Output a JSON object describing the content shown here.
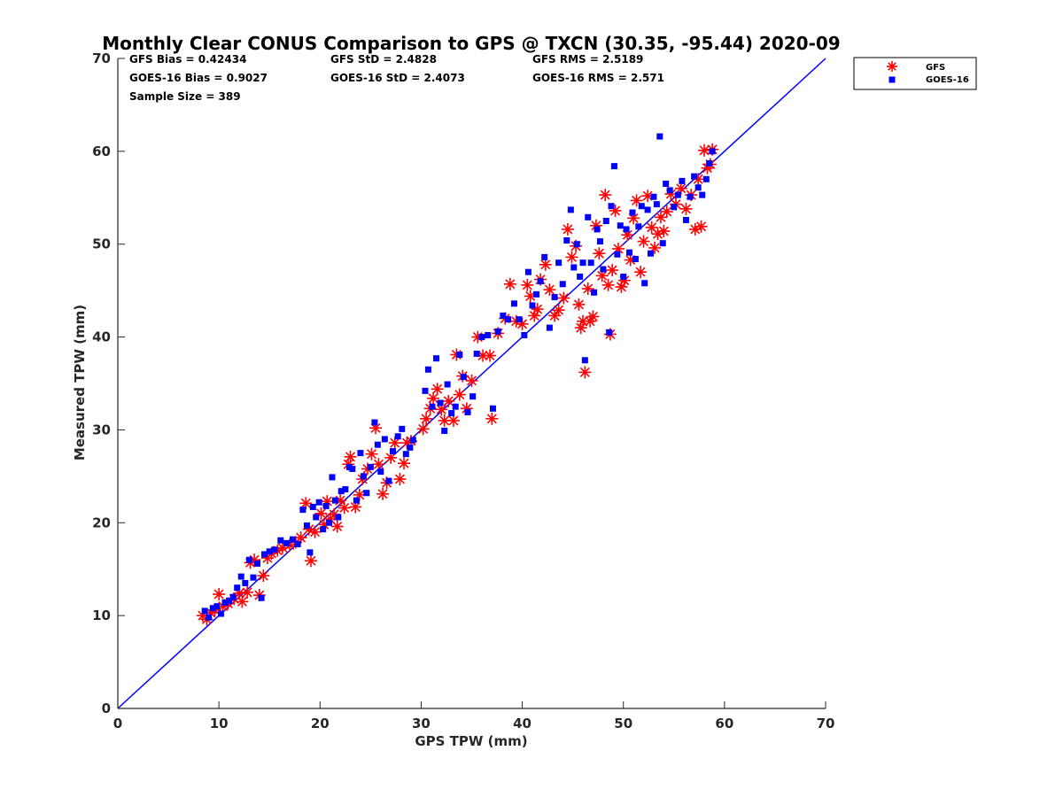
{
  "chart_data": {
    "type": "scatter",
    "title": "Monthly Clear CONUS Comparison to GPS @ TXCN (30.35, -95.44) 2020-09",
    "xlabel": "GPS TPW (mm)",
    "ylabel": "Measured TPW (mm)",
    "xlim": [
      0,
      70
    ],
    "ylim": [
      0,
      70
    ],
    "xticks": [
      0,
      10,
      20,
      30,
      40,
      50,
      60,
      70
    ],
    "yticks": [
      0,
      10,
      20,
      30,
      40,
      50,
      60,
      70
    ],
    "grid": false,
    "legend_position": "outside top-right",
    "stats": [
      [
        "GFS Bias = 0.42434",
        "GFS StD = 2.4828",
        "GFS RMS = 2.5189"
      ],
      [
        "GOES-16 Bias = 0.9027",
        "GOES-16 StD = 2.4073",
        "GOES-16 RMS = 2.571"
      ],
      [
        "Sample Size = 389",
        "",
        ""
      ]
    ],
    "reference_line": {
      "x": [
        0,
        70
      ],
      "y": [
        0,
        70
      ],
      "color": "#0000ff"
    },
    "series": [
      {
        "name": "GFS",
        "marker": "asterisk",
        "color": "#ff0000",
        "points": [
          [
            8.4,
            10.0
          ],
          [
            8.8,
            9.6
          ],
          [
            9.2,
            10.3
          ],
          [
            9.6,
            10.6
          ],
          [
            10.0,
            12.3
          ],
          [
            10.4,
            11.0
          ],
          [
            10.9,
            11.3
          ],
          [
            11.5,
            11.8
          ],
          [
            12.0,
            12.4
          ],
          [
            12.3,
            11.5
          ],
          [
            12.8,
            12.5
          ],
          [
            13.1,
            15.7
          ],
          [
            13.5,
            16.0
          ],
          [
            14.0,
            12.2
          ],
          [
            14.4,
            14.3
          ],
          [
            14.8,
            16.2
          ],
          [
            15.2,
            16.7
          ],
          [
            15.8,
            17.0
          ],
          [
            16.3,
            17.3
          ],
          [
            17.0,
            17.6
          ],
          [
            17.6,
            17.9
          ],
          [
            18.1,
            18.4
          ],
          [
            18.6,
            22.1
          ],
          [
            18.9,
            19.3
          ],
          [
            19.1,
            15.9
          ],
          [
            19.5,
            19.0
          ],
          [
            20.1,
            21.0
          ],
          [
            20.4,
            19.8
          ],
          [
            20.7,
            22.3
          ],
          [
            21.0,
            20.4
          ],
          [
            21.4,
            20.9
          ],
          [
            21.7,
            19.6
          ],
          [
            22.0,
            22.4
          ],
          [
            22.4,
            21.6
          ],
          [
            22.8,
            26.3
          ],
          [
            23.0,
            27.1
          ],
          [
            23.5,
            21.7
          ],
          [
            23.9,
            23.0
          ],
          [
            24.2,
            24.7
          ],
          [
            24.7,
            25.8
          ],
          [
            25.1,
            27.4
          ],
          [
            25.5,
            30.2
          ],
          [
            25.8,
            26.3
          ],
          [
            26.2,
            23.1
          ],
          [
            26.6,
            24.3
          ],
          [
            27.0,
            27.0
          ],
          [
            27.4,
            28.6
          ],
          [
            27.9,
            24.7
          ],
          [
            28.3,
            26.4
          ],
          [
            28.6,
            28.6
          ],
          [
            29.0,
            28.8
          ],
          [
            30.2,
            30.1
          ],
          [
            30.5,
            31.2
          ],
          [
            30.9,
            32.3
          ],
          [
            31.2,
            33.4
          ],
          [
            31.6,
            34.4
          ],
          [
            32.0,
            32.2
          ],
          [
            32.3,
            31.0
          ],
          [
            32.7,
            33.1
          ],
          [
            33.2,
            31.0
          ],
          [
            33.5,
            38.1
          ],
          [
            33.8,
            33.8
          ],
          [
            34.1,
            35.8
          ],
          [
            34.5,
            32.3
          ],
          [
            35.0,
            35.3
          ],
          [
            35.6,
            40.0
          ],
          [
            36.1,
            38.0
          ],
          [
            36.8,
            38.0
          ],
          [
            37.0,
            31.2
          ],
          [
            37.6,
            40.4
          ],
          [
            38.3,
            42.0
          ],
          [
            38.8,
            45.7
          ],
          [
            39.4,
            41.7
          ],
          [
            40.0,
            41.4
          ],
          [
            40.5,
            45.6
          ],
          [
            40.8,
            44.4
          ],
          [
            41.2,
            42.3
          ],
          [
            41.5,
            43.0
          ],
          [
            41.8,
            46.2
          ],
          [
            42.3,
            47.8
          ],
          [
            42.7,
            45.1
          ],
          [
            43.2,
            42.3
          ],
          [
            43.6,
            42.9
          ],
          [
            44.1,
            44.2
          ],
          [
            44.5,
            51.6
          ],
          [
            44.9,
            48.6
          ],
          [
            45.3,
            49.8
          ],
          [
            45.6,
            43.5
          ],
          [
            45.8,
            41.0
          ],
          [
            46.0,
            41.7
          ],
          [
            46.2,
            36.2
          ],
          [
            46.5,
            45.2
          ],
          [
            46.7,
            41.7
          ],
          [
            47.0,
            42.2
          ],
          [
            47.3,
            52.0
          ],
          [
            47.6,
            49.0
          ],
          [
            47.9,
            46.6
          ],
          [
            48.2,
            55.3
          ],
          [
            48.5,
            45.6
          ],
          [
            48.7,
            40.3
          ],
          [
            48.9,
            47.2
          ],
          [
            49.2,
            53.6
          ],
          [
            49.5,
            49.5
          ],
          [
            49.8,
            45.4
          ],
          [
            50.1,
            46.1
          ],
          [
            50.4,
            51.0
          ],
          [
            50.7,
            48.3
          ],
          [
            51.0,
            52.8
          ],
          [
            51.3,
            54.7
          ],
          [
            51.7,
            47.0
          ],
          [
            52.0,
            50.3
          ],
          [
            52.4,
            55.2
          ],
          [
            52.8,
            51.8
          ],
          [
            53.1,
            49.6
          ],
          [
            53.4,
            51.1
          ],
          [
            53.7,
            52.9
          ],
          [
            54.0,
            51.4
          ],
          [
            54.3,
            53.5
          ],
          [
            54.7,
            55.4
          ],
          [
            55.2,
            54.3
          ],
          [
            55.7,
            56.0
          ],
          [
            56.2,
            53.8
          ],
          [
            56.7,
            55.3
          ],
          [
            57.1,
            51.6
          ],
          [
            57.4,
            57.0
          ],
          [
            57.7,
            51.9
          ],
          [
            58.0,
            60.1
          ],
          [
            58.3,
            58.2
          ],
          [
            58.6,
            58.6
          ],
          [
            58.8,
            60.2
          ]
        ]
      },
      {
        "name": "GOES-16",
        "marker": "square",
        "color": "#0000ff",
        "points": [
          [
            8.6,
            10.5
          ],
          [
            9.0,
            9.8
          ],
          [
            9.4,
            10.8
          ],
          [
            9.8,
            11.0
          ],
          [
            10.2,
            10.2
          ],
          [
            10.6,
            11.4
          ],
          [
            11.0,
            11.6
          ],
          [
            11.4,
            12.0
          ],
          [
            11.8,
            13.0
          ],
          [
            12.2,
            14.2
          ],
          [
            12.6,
            13.5
          ],
          [
            13.0,
            16.0
          ],
          [
            13.4,
            14.1
          ],
          [
            13.8,
            15.6
          ],
          [
            14.2,
            11.9
          ],
          [
            14.5,
            16.6
          ],
          [
            15.0,
            16.9
          ],
          [
            15.5,
            17.1
          ],
          [
            16.1,
            18.1
          ],
          [
            16.7,
            17.8
          ],
          [
            17.3,
            18.2
          ],
          [
            17.8,
            17.7
          ],
          [
            18.3,
            21.4
          ],
          [
            18.7,
            19.7
          ],
          [
            19.0,
            16.8
          ],
          [
            19.3,
            21.7
          ],
          [
            19.6,
            20.6
          ],
          [
            19.9,
            22.2
          ],
          [
            20.3,
            19.3
          ],
          [
            20.6,
            21.8
          ],
          [
            20.9,
            20.0
          ],
          [
            21.2,
            24.9
          ],
          [
            21.5,
            22.4
          ],
          [
            21.8,
            20.6
          ],
          [
            22.1,
            23.4
          ],
          [
            22.5,
            23.6
          ],
          [
            22.9,
            26.0
          ],
          [
            23.2,
            25.8
          ],
          [
            23.6,
            22.4
          ],
          [
            24.0,
            27.5
          ],
          [
            24.3,
            25.0
          ],
          [
            24.6,
            23.2
          ],
          [
            25.0,
            26.0
          ],
          [
            25.4,
            30.8
          ],
          [
            25.7,
            28.4
          ],
          [
            26.0,
            25.5
          ],
          [
            26.4,
            29.0
          ],
          [
            26.8,
            24.5
          ],
          [
            27.2,
            27.7
          ],
          [
            27.7,
            29.3
          ],
          [
            28.1,
            30.1
          ],
          [
            28.5,
            27.4
          ],
          [
            28.9,
            28.1
          ],
          [
            29.2,
            28.9
          ],
          [
            30.4,
            34.2
          ],
          [
            30.7,
            36.5
          ],
          [
            31.1,
            32.5
          ],
          [
            31.5,
            37.7
          ],
          [
            31.9,
            32.9
          ],
          [
            32.3,
            29.9
          ],
          [
            32.6,
            34.9
          ],
          [
            33.0,
            31.8
          ],
          [
            33.4,
            32.5
          ],
          [
            33.8,
            38.1
          ],
          [
            34.2,
            35.7
          ],
          [
            34.6,
            31.9
          ],
          [
            35.1,
            33.6
          ],
          [
            35.5,
            38.2
          ],
          [
            36.0,
            40.0
          ],
          [
            36.6,
            40.2
          ],
          [
            37.1,
            32.3
          ],
          [
            37.6,
            40.6
          ],
          [
            38.1,
            42.3
          ],
          [
            38.6,
            41.9
          ],
          [
            39.2,
            43.6
          ],
          [
            39.7,
            41.9
          ],
          [
            40.2,
            40.2
          ],
          [
            40.6,
            47.0
          ],
          [
            41.0,
            43.4
          ],
          [
            41.4,
            44.6
          ],
          [
            41.8,
            46.0
          ],
          [
            42.2,
            48.6
          ],
          [
            42.7,
            41.0
          ],
          [
            43.2,
            44.3
          ],
          [
            43.6,
            48.0
          ],
          [
            44.0,
            45.7
          ],
          [
            44.4,
            50.4
          ],
          [
            44.8,
            53.7
          ],
          [
            45.1,
            47.5
          ],
          [
            45.4,
            50.0
          ],
          [
            45.7,
            46.5
          ],
          [
            46.0,
            48.0
          ],
          [
            46.2,
            37.5
          ],
          [
            46.5,
            52.9
          ],
          [
            46.8,
            48.0
          ],
          [
            47.1,
            44.8
          ],
          [
            47.4,
            51.6
          ],
          [
            47.7,
            50.3
          ],
          [
            48.0,
            47.3
          ],
          [
            48.3,
            52.5
          ],
          [
            48.6,
            40.5
          ],
          [
            48.8,
            54.1
          ],
          [
            49.1,
            58.4
          ],
          [
            49.4,
            48.9
          ],
          [
            49.7,
            52.0
          ],
          [
            50.0,
            46.5
          ],
          [
            50.3,
            51.6
          ],
          [
            50.6,
            49.1
          ],
          [
            50.9,
            53.4
          ],
          [
            51.2,
            48.4
          ],
          [
            51.5,
            51.9
          ],
          [
            51.8,
            54.1
          ],
          [
            52.1,
            45.8
          ],
          [
            52.4,
            53.7
          ],
          [
            52.7,
            49.0
          ],
          [
            53.0,
            55.1
          ],
          [
            53.3,
            54.3
          ],
          [
            53.6,
            61.6
          ],
          [
            53.9,
            50.1
          ],
          [
            54.2,
            56.5
          ],
          [
            54.6,
            55.8
          ],
          [
            55.0,
            54.0
          ],
          [
            55.4,
            55.3
          ],
          [
            55.8,
            56.8
          ],
          [
            56.2,
            52.6
          ],
          [
            56.6,
            55.1
          ],
          [
            57.0,
            57.3
          ],
          [
            57.4,
            56.1
          ],
          [
            57.8,
            55.3
          ],
          [
            58.2,
            57.0
          ],
          [
            58.5,
            58.7
          ],
          [
            58.8,
            60.0
          ]
        ]
      }
    ]
  }
}
